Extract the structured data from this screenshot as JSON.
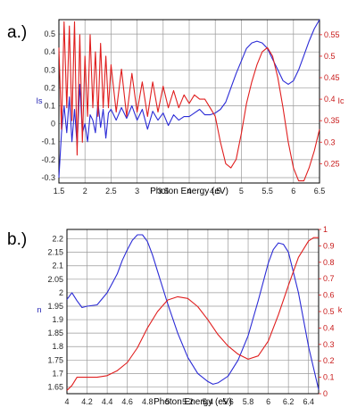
{
  "colors": {
    "blue": "#2b2bd6",
    "red": "#e01e1e",
    "grid": "#9a9a9a",
    "frame": "#000000"
  },
  "chart_data": [
    {
      "panel_label": "a.)",
      "type": "line",
      "xlabel": "Photon Energy (eV)",
      "ylabel_left": "Is",
      "ylabel_right": "Ic",
      "xlim": [
        1.5,
        6.5
      ],
      "ylim_left": [
        -0.33,
        0.58
      ],
      "ylim_right": [
        0.205,
        0.585
      ],
      "xticks": [
        1.5,
        2,
        2.5,
        3,
        3.5,
        4,
        4.5,
        5,
        5.5,
        6,
        6.5
      ],
      "xtick_labels": [
        "1.5",
        "2",
        "2.5",
        "3",
        "3.5",
        "4",
        "4.5",
        "5",
        "5.5",
        "6",
        "6.5"
      ],
      "yticks_left": [
        -0.3,
        -0.2,
        -0.1,
        0,
        0.1,
        0.2,
        0.3,
        0.4,
        0.5
      ],
      "ytick_labels_left": [
        "-0.3",
        "-0.2",
        "-0.1",
        "0",
        "0.1",
        "0.2",
        "0.3",
        "0.4",
        "0.5"
      ],
      "yticks_right": [
        0.25,
        0.3,
        0.35,
        0.4,
        0.45,
        0.5,
        0.55
      ],
      "ytick_labels_right": [
        "0.25",
        "0.3",
        "0.35",
        "0.4",
        "0.45",
        "0.5",
        "0.55"
      ],
      "grid": true,
      "series": [
        {
          "axis": "left",
          "color": "blue",
          "x": [
            1.5,
            1.55,
            1.6,
            1.65,
            1.7,
            1.75,
            1.8,
            1.85,
            1.9,
            1.95,
            2.0,
            2.05,
            2.1,
            2.15,
            2.2,
            2.25,
            2.3,
            2.35,
            2.4,
            2.45,
            2.5,
            2.6,
            2.7,
            2.8,
            2.9,
            3.0,
            3.1,
            3.2,
            3.3,
            3.4,
            3.5,
            3.6,
            3.7,
            3.8,
            3.9,
            4.0,
            4.1,
            4.2,
            4.3,
            4.4,
            4.5,
            4.6,
            4.7,
            4.8,
            4.9,
            5.0,
            5.1,
            5.2,
            5.3,
            5.4,
            5.5,
            5.6,
            5.7,
            5.8,
            5.9,
            6.0,
            6.1,
            6.2,
            6.3,
            6.4,
            6.5
          ],
          "y": [
            -0.3,
            -0.05,
            0.1,
            -0.05,
            0.15,
            -0.1,
            0.08,
            -0.12,
            0.22,
            -0.05,
            0.0,
            -0.1,
            0.05,
            0.02,
            -0.05,
            0.12,
            -0.02,
            0.08,
            -0.08,
            0.06,
            0.08,
            0.02,
            0.09,
            0.03,
            0.1,
            0.02,
            0.08,
            -0.03,
            0.07,
            0.02,
            0.06,
            -0.01,
            0.05,
            0.02,
            0.04,
            0.04,
            0.06,
            0.08,
            0.05,
            0.05,
            0.06,
            0.08,
            0.12,
            0.2,
            0.28,
            0.35,
            0.42,
            0.45,
            0.46,
            0.45,
            0.42,
            0.36,
            0.3,
            0.24,
            0.22,
            0.24,
            0.3,
            0.38,
            0.46,
            0.53,
            0.58
          ]
        },
        {
          "axis": "right",
          "color": "red",
          "x": [
            1.5,
            1.55,
            1.6,
            1.65,
            1.7,
            1.75,
            1.8,
            1.85,
            1.9,
            1.95,
            2.0,
            2.05,
            2.1,
            2.15,
            2.2,
            2.25,
            2.3,
            2.35,
            2.4,
            2.45,
            2.5,
            2.6,
            2.7,
            2.8,
            2.9,
            3.0,
            3.1,
            3.2,
            3.3,
            3.4,
            3.5,
            3.6,
            3.7,
            3.8,
            3.9,
            4.0,
            4.1,
            4.2,
            4.3,
            4.4,
            4.5,
            4.6,
            4.7,
            4.8,
            4.9,
            5.0,
            5.1,
            5.2,
            5.3,
            5.4,
            5.5,
            5.6,
            5.7,
            5.8,
            5.9,
            6.0,
            6.1,
            6.2,
            6.3,
            6.4,
            6.5
          ],
          "y": [
            0.52,
            0.33,
            0.58,
            0.38,
            0.57,
            0.35,
            0.58,
            0.27,
            0.55,
            0.3,
            0.5,
            0.36,
            0.55,
            0.38,
            0.51,
            0.36,
            0.53,
            0.38,
            0.5,
            0.38,
            0.48,
            0.37,
            0.47,
            0.36,
            0.46,
            0.37,
            0.44,
            0.36,
            0.44,
            0.37,
            0.43,
            0.38,
            0.42,
            0.38,
            0.41,
            0.39,
            0.41,
            0.4,
            0.4,
            0.38,
            0.36,
            0.3,
            0.25,
            0.24,
            0.26,
            0.32,
            0.39,
            0.44,
            0.48,
            0.51,
            0.52,
            0.5,
            0.45,
            0.38,
            0.3,
            0.24,
            0.21,
            0.21,
            0.24,
            0.28,
            0.33
          ]
        }
      ]
    },
    {
      "panel_label": "b.)",
      "type": "line",
      "xlabel": "Photon Energy (eV)",
      "ylabel_left": "n",
      "ylabel_right": "k",
      "xlim": [
        4.0,
        6.5
      ],
      "ylim_left": [
        1.625,
        2.235
      ],
      "ylim_right": [
        0,
        1.0
      ],
      "xticks": [
        4,
        4.2,
        4.4,
        4.6,
        4.8,
        5,
        5.2,
        5.4,
        5.6,
        5.8,
        6,
        6.2,
        6.4
      ],
      "xtick_labels": [
        "4",
        "4.2",
        "4.4",
        "4.6",
        "4.8",
        "5",
        "5.2",
        "5.4",
        "5.6",
        "5.8",
        "6",
        "6.2",
        "6.4"
      ],
      "yticks_left": [
        1.65,
        1.7,
        1.75,
        1.8,
        1.85,
        1.9,
        1.95,
        2,
        2.05,
        2.1,
        2.15,
        2.2
      ],
      "ytick_labels_left": [
        "1.65",
        "1.7",
        "1.75",
        "1.8",
        "1.85",
        "1.9",
        "1.95",
        "2",
        "2.05",
        "2.1",
        "2.15",
        "2.2"
      ],
      "yticks_right": [
        0,
        0.1,
        0.2,
        0.3,
        0.4,
        0.5,
        0.6,
        0.7,
        0.8,
        0.9,
        1
      ],
      "ytick_labels_right": [
        "0",
        "0.1",
        "0.2",
        "0.3",
        "0.4",
        "0.5",
        "0.6",
        "0.7",
        "0.8",
        "0.9",
        "1"
      ],
      "grid": true,
      "series": [
        {
          "axis": "left",
          "color": "blue",
          "x": [
            4.0,
            4.05,
            4.1,
            4.15,
            4.2,
            4.3,
            4.4,
            4.5,
            4.55,
            4.6,
            4.65,
            4.7,
            4.75,
            4.8,
            4.85,
            4.9,
            5.0,
            5.1,
            5.2,
            5.3,
            5.4,
            5.45,
            5.5,
            5.6,
            5.7,
            5.8,
            5.9,
            6.0,
            6.05,
            6.1,
            6.15,
            6.2,
            6.3,
            6.4,
            6.5
          ],
          "y": [
            1.975,
            2.0,
            1.97,
            1.945,
            1.95,
            1.955,
            2.0,
            2.07,
            2.12,
            2.16,
            2.195,
            2.215,
            2.215,
            2.19,
            2.14,
            2.08,
            1.96,
            1.85,
            1.76,
            1.7,
            1.67,
            1.66,
            1.665,
            1.69,
            1.75,
            1.84,
            1.97,
            2.11,
            2.16,
            2.185,
            2.18,
            2.15,
            2.0,
            1.8,
            1.64
          ]
        },
        {
          "axis": "right",
          "color": "red",
          "x": [
            4.0,
            4.05,
            4.1,
            4.15,
            4.2,
            4.3,
            4.4,
            4.5,
            4.6,
            4.7,
            4.8,
            4.9,
            5.0,
            5.1,
            5.2,
            5.3,
            5.4,
            5.5,
            5.6,
            5.7,
            5.8,
            5.9,
            6.0,
            6.1,
            6.2,
            6.3,
            6.4,
            6.45,
            6.5
          ],
          "y": [
            0.02,
            0.05,
            0.1,
            0.1,
            0.1,
            0.1,
            0.11,
            0.14,
            0.19,
            0.28,
            0.4,
            0.5,
            0.57,
            0.59,
            0.58,
            0.53,
            0.45,
            0.36,
            0.29,
            0.24,
            0.21,
            0.23,
            0.32,
            0.48,
            0.66,
            0.83,
            0.93,
            0.95,
            0.95
          ]
        }
      ]
    }
  ]
}
